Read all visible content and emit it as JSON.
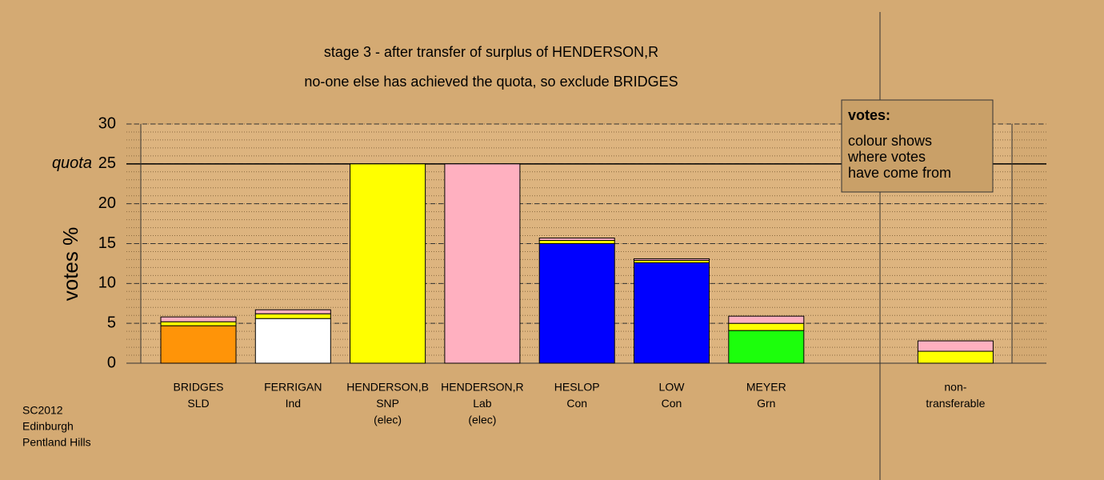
{
  "chart_data": {
    "type": "stacked_bar",
    "title": "stage 3 - after transfer of surplus of HENDERSON,R",
    "subtitle": "no-one else has achieved the quota, so exclude BRIDGES",
    "y_label": "votes %",
    "categories": [
      [
        "BRIDGES",
        "SLD"
      ],
      [
        "FERRIGAN",
        "Ind"
      ],
      [
        "HENDERSON,B",
        "SNP",
        "(elec)"
      ],
      [
        "HENDERSON,R",
        "Lab",
        "(elec)"
      ],
      [
        "HESLOP",
        "Con"
      ],
      [
        "LOW",
        "Con"
      ],
      [
        "MEYER",
        "Grn"
      ],
      null,
      [
        "non-",
        "transferable"
      ]
    ],
    "series": [
      {
        "color": "#ff9408",
        "values": [
          4.7,
          null,
          null,
          null,
          null,
          null,
          null,
          null,
          null
        ]
      },
      {
        "color": "#ffffff",
        "values": [
          null,
          5.6,
          null,
          null,
          null,
          null,
          null,
          null,
          null
        ]
      },
      {
        "color": "#0000ff",
        "values": [
          null,
          null,
          null,
          null,
          15.0,
          12.6,
          null,
          null,
          null
        ]
      },
      {
        "color": "#1cff0c",
        "values": [
          null,
          null,
          null,
          null,
          null,
          null,
          4.1,
          null,
          null
        ]
      },
      {
        "color": "#ffff00",
        "values": [
          0.5,
          0.6,
          25,
          null,
          0.4,
          0.3,
          0.9,
          null,
          1.5
        ]
      },
      {
        "color": "#ffb0c0",
        "values": [
          0.6,
          0.5,
          null,
          25,
          0.3,
          0.2,
          0.9,
          null,
          1.3
        ]
      }
    ],
    "ylim": [
      0,
      30
    ],
    "yticks": [
      0,
      5,
      10,
      15,
      20,
      25,
      30
    ],
    "grid": true,
    "minor_grid_step": 1,
    "quota": {
      "value": 25,
      "label": "quota"
    },
    "note": {
      "title": "votes:",
      "lines": [
        "colour shows",
        "where votes",
        "have come from"
      ]
    },
    "footer": [
      "SC2012",
      "Edinburgh",
      "Pentland Hills"
    ]
  }
}
